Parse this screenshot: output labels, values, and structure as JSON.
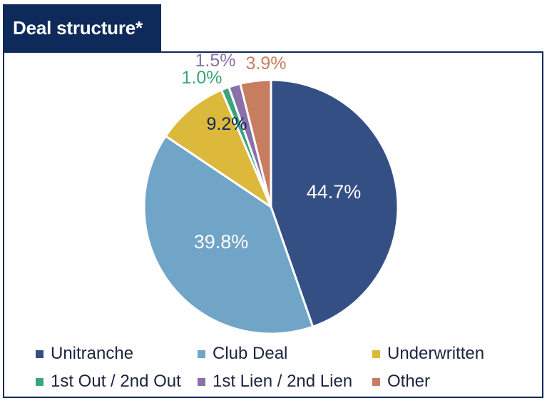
{
  "title": "Deal structure*",
  "chart_data": {
    "type": "pie",
    "title": "Deal structure*",
    "legend_position": "bottom",
    "slices": [
      {
        "name": "Unitranche",
        "value": 44.7,
        "label": "44.7%",
        "color": "#344f84"
      },
      {
        "name": "Club Deal",
        "value": 39.8,
        "label": "39.8%",
        "color": "#71a5c8"
      },
      {
        "name": "Underwritten",
        "value": 9.2,
        "label": "9.2%",
        "color": "#dcb93a"
      },
      {
        "name": "1st Out / 2nd Out",
        "value": 1.0,
        "label": "1.0%",
        "color": "#3aa57a"
      },
      {
        "name": "1st Lien / 2nd Lien",
        "value": 1.5,
        "label": "1.5%",
        "color": "#8a6fa8"
      },
      {
        "name": "Other",
        "value": 3.9,
        "label": "3.9%",
        "color": "#c77e60"
      }
    ]
  }
}
